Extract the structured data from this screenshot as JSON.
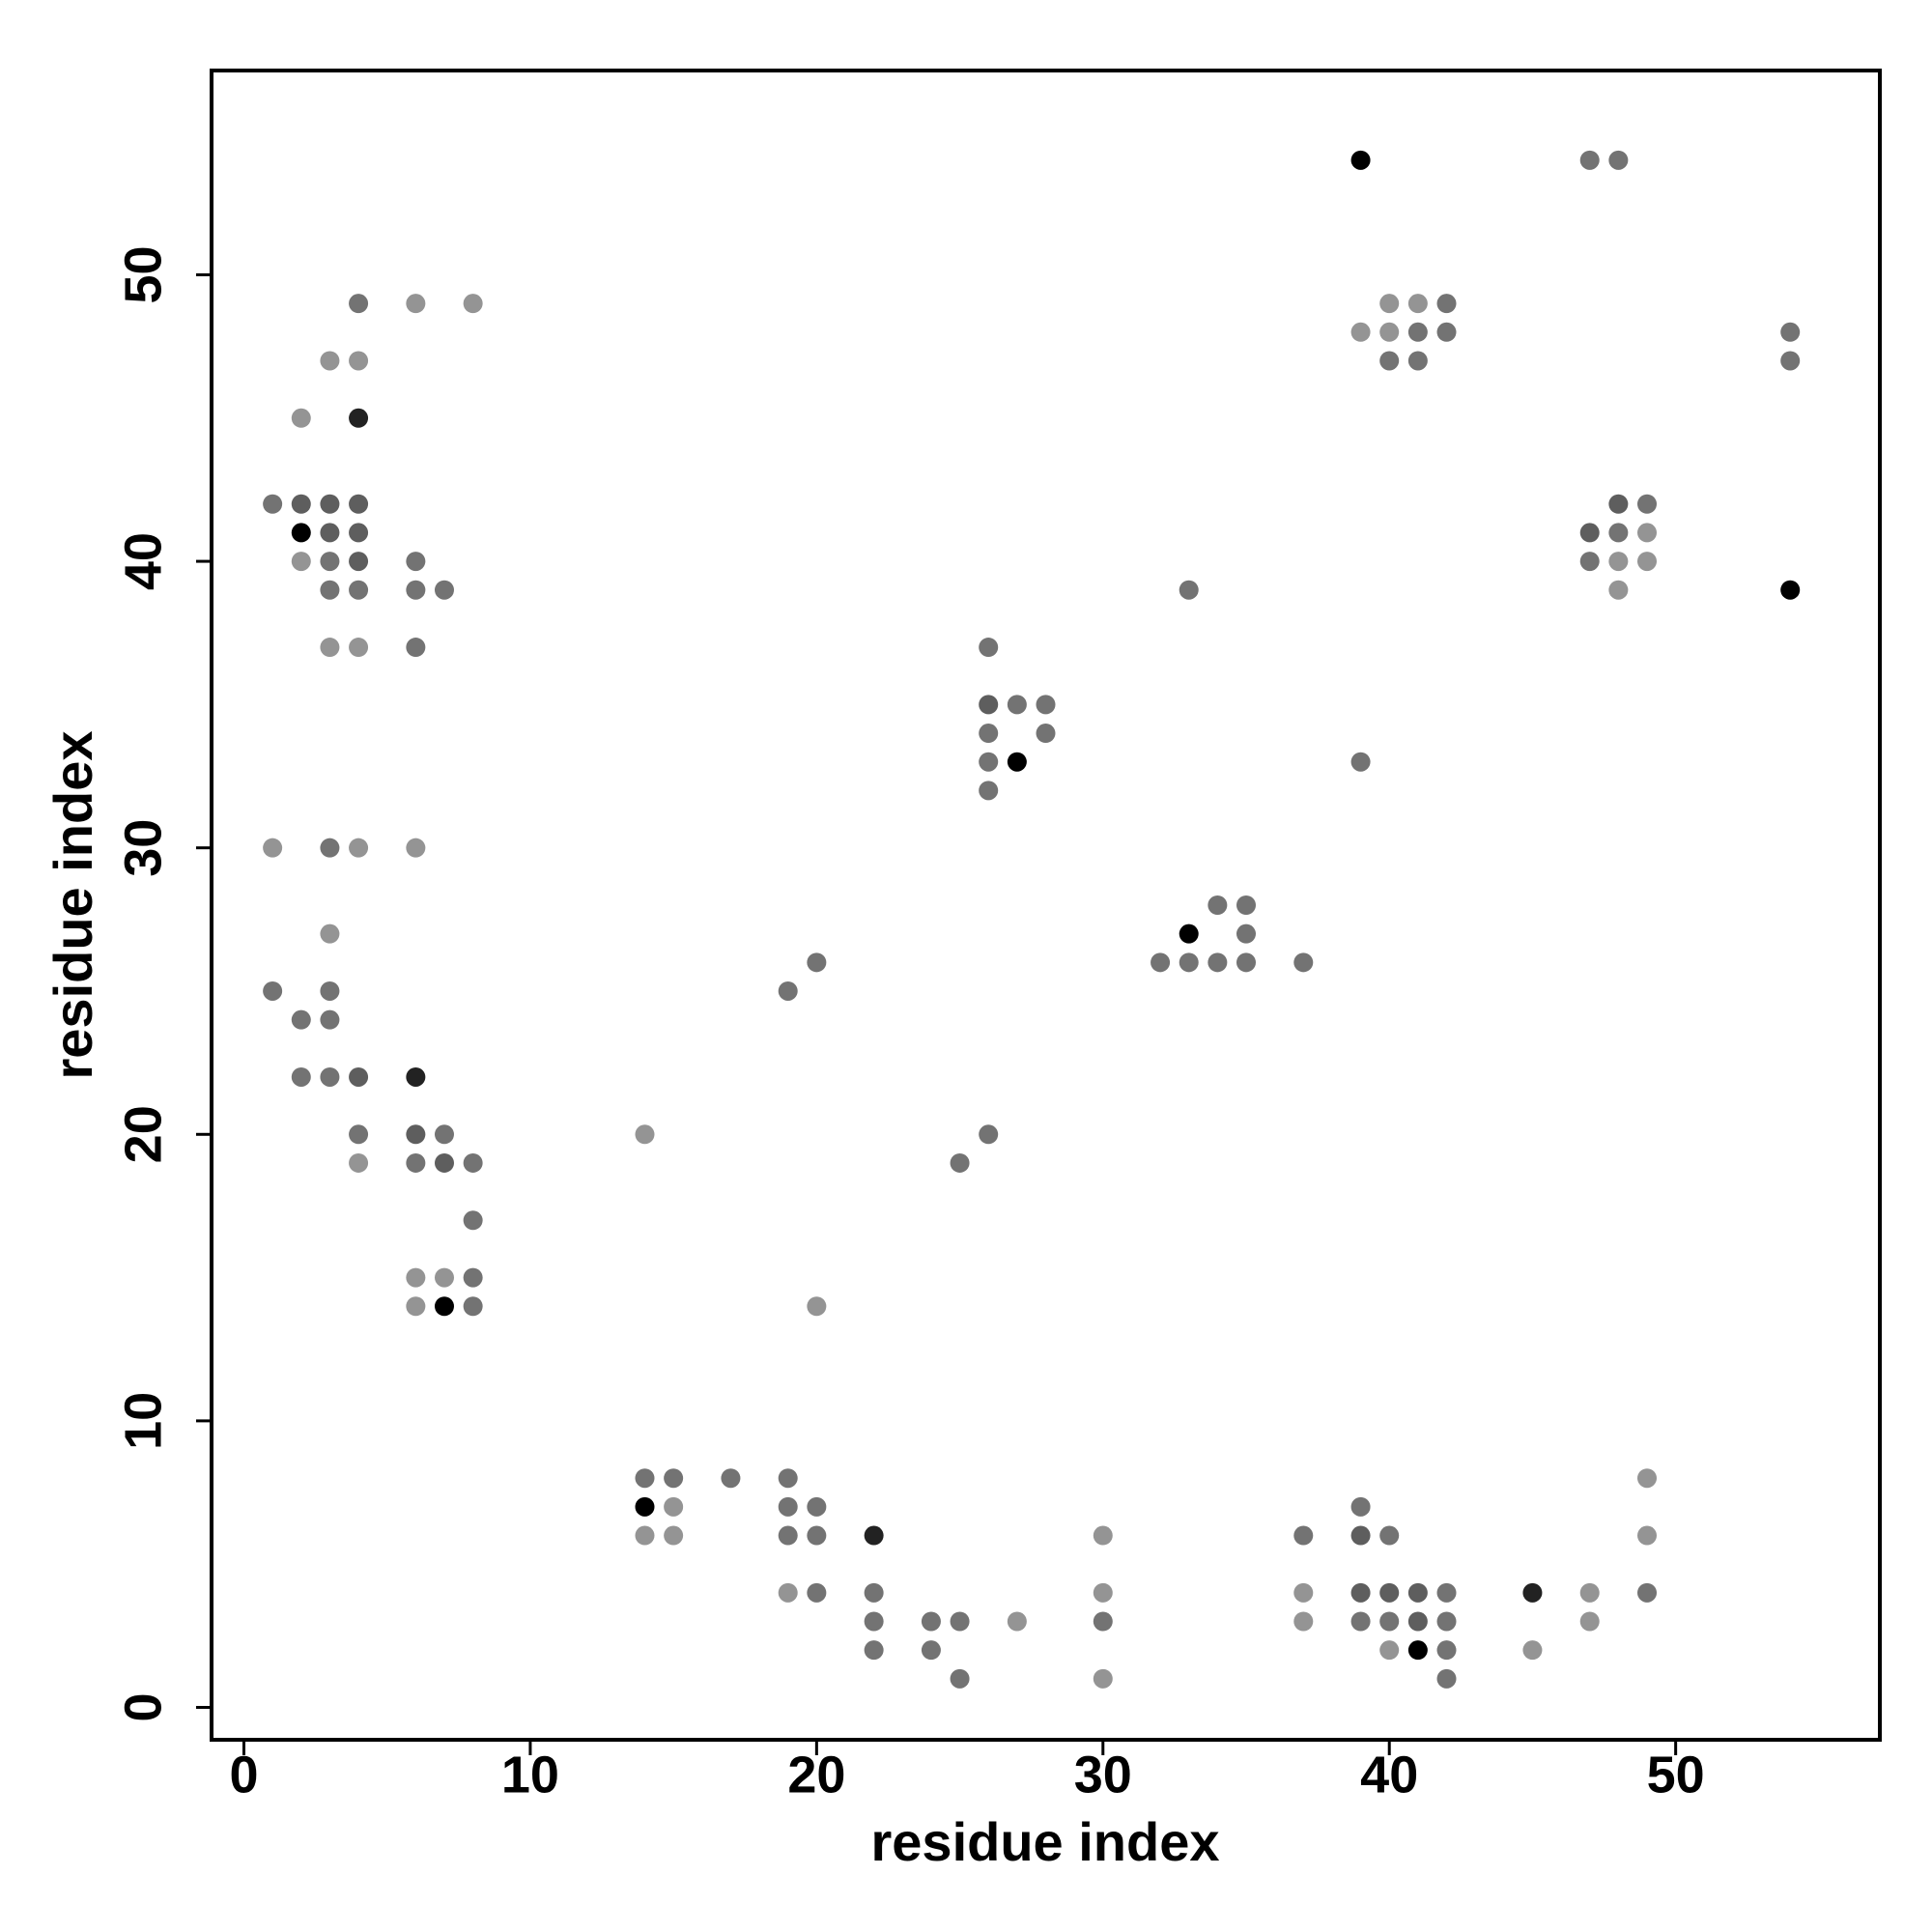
{
  "chart_data": {
    "type": "scatter",
    "x_label": "residue index",
    "y_label": "residue index",
    "xlim": [
      -1.13,
      57.13
    ],
    "ylim": [
      -1.13,
      57.13
    ],
    "xticks": [
      0,
      10,
      20,
      30,
      40,
      50
    ],
    "yticks": [
      0,
      10,
      20,
      30,
      40,
      50
    ],
    "x": [
      1,
      1,
      1,
      2,
      2,
      2,
      2,
      2,
      2,
      3,
      3,
      3,
      3,
      3,
      3,
      3,
      3,
      3,
      3,
      3,
      4,
      4,
      4,
      4,
      4,
      4,
      4,
      4,
      4,
      4,
      4,
      4,
      6,
      6,
      6,
      6,
      6,
      6,
      6,
      6,
      6,
      6,
      7,
      7,
      7,
      7,
      7,
      8,
      8,
      8,
      8,
      8,
      14,
      14,
      14,
      14,
      15,
      15,
      15,
      17,
      19,
      19,
      19,
      19,
      19,
      20,
      20,
      20,
      20,
      20,
      22,
      22,
      22,
      22,
      24,
      24,
      25,
      25,
      25,
      26,
      26,
      26,
      26,
      26,
      26,
      27,
      27,
      27,
      28,
      28,
      30,
      30,
      30,
      30,
      32,
      33,
      33,
      33,
      34,
      34,
      35,
      35,
      35,
      37,
      37,
      37,
      37,
      39,
      39,
      39,
      39,
      39,
      39,
      39,
      40,
      40,
      40,
      40,
      40,
      40,
      40,
      41,
      41,
      41,
      41,
      41,
      41,
      42,
      42,
      42,
      42,
      42,
      42,
      45,
      45,
      47,
      47,
      47,
      47,
      47,
      48,
      48,
      48,
      48,
      48,
      49,
      49,
      49,
      49,
      49,
      49,
      54,
      54,
      54
    ],
    "values": [
      42,
      30,
      25,
      45,
      42,
      41,
      40,
      24,
      22,
      47,
      42,
      41,
      40,
      39,
      37,
      30,
      27,
      25,
      24,
      22,
      49,
      47,
      45,
      42,
      41,
      40,
      39,
      37,
      30,
      22,
      20,
      19,
      49,
      40,
      39,
      37,
      30,
      22,
      20,
      19,
      15,
      14,
      39,
      20,
      19,
      15,
      14,
      49,
      19,
      17,
      15,
      14,
      20,
      8,
      7,
      6,
      8,
      7,
      6,
      8,
      25,
      8,
      7,
      6,
      4,
      26,
      14,
      7,
      6,
      4,
      6,
      4,
      3,
      2,
      3,
      2,
      19,
      3,
      1,
      37,
      35,
      34,
      33,
      32,
      20,
      35,
      33,
      3,
      35,
      34,
      6,
      4,
      3,
      1,
      26,
      39,
      27,
      26,
      28,
      26,
      28,
      27,
      26,
      26,
      6,
      4,
      3,
      54,
      48,
      33,
      7,
      6,
      4,
      3,
      49,
      48,
      47,
      6,
      4,
      3,
      2,
      49,
      48,
      47,
      4,
      3,
      2,
      49,
      48,
      4,
      3,
      2,
      1,
      4,
      2,
      54,
      41,
      40,
      4,
      3,
      54,
      42,
      41,
      40,
      39,
      42,
      41,
      40,
      8,
      6,
      4,
      48,
      47,
      39
    ],
    "colors": [
      "#737373",
      "#949494",
      "#737373",
      "#949494",
      "#5e5e5e",
      "#000000",
      "#949494",
      "#737373",
      "#737373",
      "#949494",
      "#5e5e5e",
      "#5e5e5e",
      "#737373",
      "#737373",
      "#949494",
      "#737373",
      "#949494",
      "#737373",
      "#737373",
      "#737373",
      "#737373",
      "#949494",
      "#222222",
      "#5e5e5e",
      "#5e5e5e",
      "#5e5e5e",
      "#737373",
      "#949494",
      "#949494",
      "#5e5e5e",
      "#737373",
      "#949494",
      "#949494",
      "#737373",
      "#737373",
      "#737373",
      "#949494",
      "#222222",
      "#5e5e5e",
      "#737373",
      "#949494",
      "#949494",
      "#737373",
      "#737373",
      "#5e5e5e",
      "#949494",
      "#000000",
      "#949494",
      "#737373",
      "#737373",
      "#737373",
      "#737373",
      "#949494",
      "#737373",
      "#000000",
      "#949494",
      "#737373",
      "#949494",
      "#949494",
      "#737373",
      "#737373",
      "#737373",
      "#737373",
      "#737373",
      "#949494",
      "#737373",
      "#949494",
      "#737373",
      "#737373",
      "#737373",
      "#222222",
      "#737373",
      "#737373",
      "#737373",
      "#737373",
      "#737373",
      "#737373",
      "#737373",
      "#737373",
      "#737373",
      "#5e5e5e",
      "#737373",
      "#737373",
      "#737373",
      "#737373",
      "#737373",
      "#000000",
      "#949494",
      "#737373",
      "#737373",
      "#949494",
      "#949494",
      "#737373",
      "#949494",
      "#737373",
      "#737373",
      "#000000",
      "#737373",
      "#737373",
      "#737373",
      "#737373",
      "#737373",
      "#737373",
      "#737373",
      "#737373",
      "#949494",
      "#949494",
      "#000000",
      "#949494",
      "#737373",
      "#737373",
      "#5e5e5e",
      "#5e5e5e",
      "#737373",
      "#949494",
      "#949494",
      "#737373",
      "#737373",
      "#5e5e5e",
      "#737373",
      "#949494",
      "#949494",
      "#737373",
      "#737373",
      "#5e5e5e",
      "#5e5e5e",
      "#000000",
      "#737373",
      "#737373",
      "#737373",
      "#737373",
      "#737373",
      "#737373",
      "#222222",
      "#949494",
      "#737373",
      "#5e5e5e",
      "#737373",
      "#949494",
      "#949494",
      "#737373",
      "#5e5e5e",
      "#737373",
      "#949494",
      "#949494",
      "#737373",
      "#949494",
      "#949494",
      "#949494",
      "#949494",
      "#737373",
      "#737373",
      "#737373",
      "#000000"
    ]
  }
}
